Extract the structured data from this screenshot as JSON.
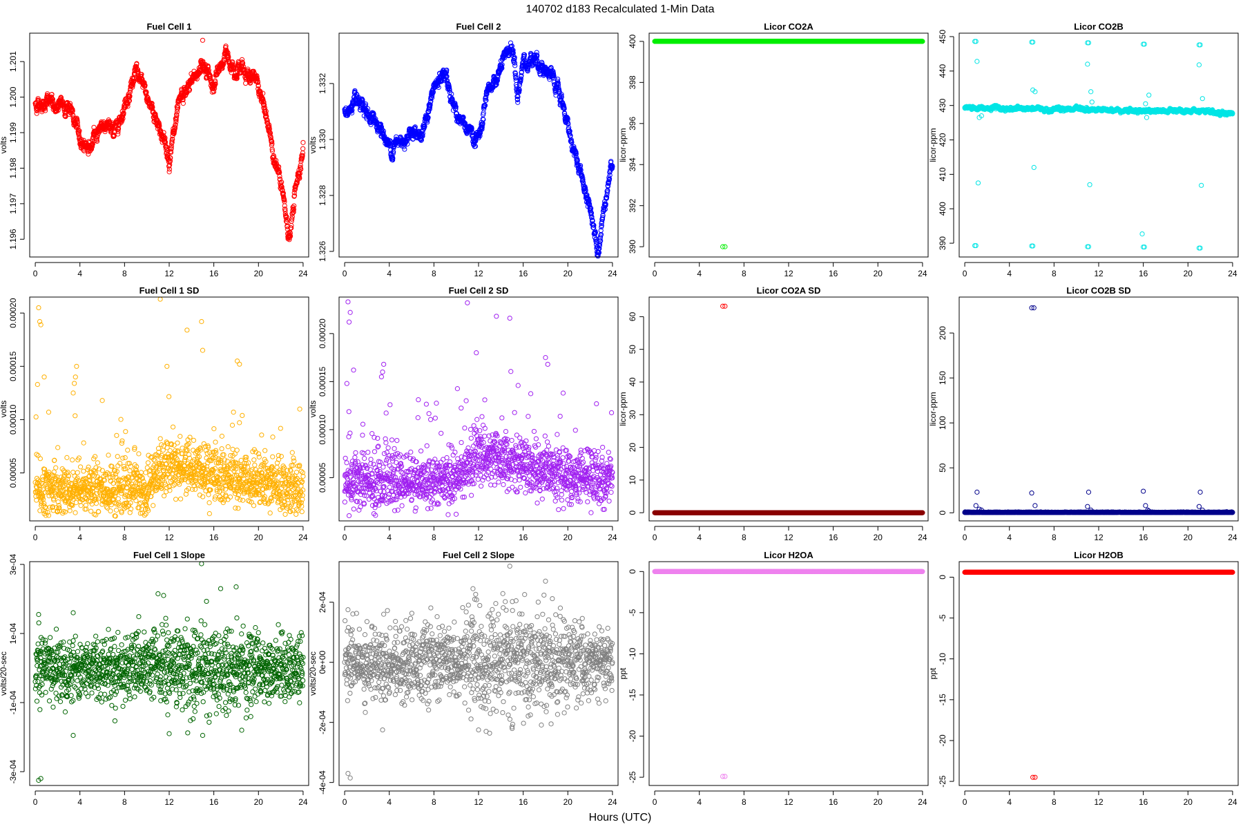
{
  "figure": {
    "title": "140702   d183   Recalculated 1-Min Data",
    "xlabel": "Hours (UTC)"
  },
  "chart_data": [
    {
      "type": "scatter",
      "title": "Fuel Cell 1",
      "ylabel": "volts",
      "color": "#ff0000",
      "xlim": [
        -0.5,
        24.5
      ],
      "ylim": [
        1.1955,
        1.2018
      ],
      "xticks": [
        0,
        4,
        8,
        12,
        16,
        20,
        24
      ],
      "yticks": [
        1.196,
        1.197,
        1.198,
        1.199,
        1.2,
        1.201
      ],
      "ytick_labels": [
        "1.196",
        "1.197",
        "1.198",
        "1.199",
        "1.200",
        "1.201"
      ],
      "mode": "curve",
      "noise": 0.00012,
      "profile": [
        [
          0,
          1.1998
        ],
        [
          1,
          1.1999
        ],
        [
          2,
          1.1997
        ],
        [
          3,
          1.1998
        ],
        [
          4,
          1.1988
        ],
        [
          5,
          1.1986
        ],
        [
          6,
          1.1993
        ],
        [
          7,
          1.199
        ],
        [
          8,
          1.1998
        ],
        [
          9,
          1.2007
        ],
        [
          10,
          1.2
        ],
        [
          11,
          1.1993
        ],
        [
          12,
          1.1983
        ],
        [
          13,
          1.1998
        ],
        [
          14,
          1.2004
        ],
        [
          15,
          1.201
        ],
        [
          16,
          1.2003
        ],
        [
          17,
          1.2012
        ],
        [
          18,
          1.2009
        ],
        [
          19,
          1.2007
        ],
        [
          20,
          1.2003
        ],
        [
          21,
          1.199
        ],
        [
          22,
          1.1975
        ],
        [
          22.8,
          1.196
        ],
        [
          23.5,
          1.1978
        ],
        [
          24,
          1.1985
        ]
      ],
      "outliers": [
        [
          15,
          1.2016
        ]
      ]
    },
    {
      "type": "scatter",
      "title": "Fuel Cell 2",
      "ylabel": "volts",
      "color": "#0000ff",
      "xlim": [
        -0.5,
        24.5
      ],
      "ylim": [
        1.3258,
        1.3338
      ],
      "xticks": [
        0,
        4,
        8,
        12,
        16,
        20,
        24
      ],
      "yticks": [
        1.326,
        1.328,
        1.33,
        1.332
      ],
      "ytick_labels": [
        "1.326",
        "1.328",
        "1.330",
        "1.332"
      ],
      "mode": "curve",
      "noise": 0.00015,
      "profile": [
        [
          0,
          1.331
        ],
        [
          1,
          1.3312
        ],
        [
          2,
          1.3308
        ],
        [
          3,
          1.3306
        ],
        [
          4,
          1.3297
        ],
        [
          5,
          1.3299
        ],
        [
          6,
          1.3304
        ],
        [
          7,
          1.3302
        ],
        [
          8,
          1.3318
        ],
        [
          9,
          1.3323
        ],
        [
          10,
          1.331
        ],
        [
          11,
          1.3302
        ],
        [
          12,
          1.33
        ],
        [
          13,
          1.3317
        ],
        [
          14,
          1.3325
        ],
        [
          15,
          1.3334
        ],
        [
          15.5,
          1.3315
        ],
        [
          16,
          1.3327
        ],
        [
          17,
          1.333
        ],
        [
          18,
          1.3325
        ],
        [
          19,
          1.3318
        ],
        [
          20,
          1.3305
        ],
        [
          21,
          1.329
        ],
        [
          22,
          1.3275
        ],
        [
          22.7,
          1.3262
        ],
        [
          23.5,
          1.3283
        ],
        [
          24,
          1.3292
        ]
      ],
      "outliers": []
    },
    {
      "type": "scatter",
      "title": "Licor CO2A",
      "ylabel": "licor-ppm",
      "color": "#00ee00",
      "xlim": [
        -0.5,
        24.5
      ],
      "ylim": [
        389.5,
        400.4
      ],
      "xticks": [
        0,
        4,
        8,
        12,
        16,
        20,
        24
      ],
      "yticks": [
        390,
        392,
        394,
        396,
        398,
        400
      ],
      "ytick_labels": [
        "390",
        "392",
        "394",
        "396",
        "398",
        "400"
      ],
      "mode": "flat",
      "level": 400,
      "noise": 0,
      "outliers": [
        [
          6.1,
          390
        ],
        [
          6.3,
          390
        ]
      ]
    },
    {
      "type": "scatter",
      "title": "Licor CO2B",
      "ylabel": "licor-ppm",
      "color": "#00e5e5",
      "xlim": [
        -0.5,
        24.5
      ],
      "ylim": [
        386,
        451
      ],
      "xticks": [
        0,
        4,
        8,
        12,
        16,
        20,
        24
      ],
      "yticks": [
        390,
        400,
        410,
        420,
        430,
        440,
        450
      ],
      "ytick_labels": [
        "390",
        "400",
        "410",
        "420",
        "430",
        "440",
        "450"
      ],
      "mode": "curve",
      "noise": 0.3,
      "profile": [
        [
          0,
          429.2
        ],
        [
          6,
          429.0
        ],
        [
          12,
          428.8
        ],
        [
          18,
          428.4
        ],
        [
          24,
          427.8
        ]
      ],
      "outliers": [
        [
          0.9,
          448.6
        ],
        [
          1.0,
          448.6
        ],
        [
          0.9,
          389.3
        ],
        [
          1.0,
          389.3
        ],
        [
          1.1,
          442.8
        ],
        [
          1.2,
          407.5
        ],
        [
          1.3,
          426.5
        ],
        [
          1.5,
          427.0
        ],
        [
          6.0,
          448.4
        ],
        [
          6.1,
          448.4
        ],
        [
          6.0,
          389.2
        ],
        [
          6.1,
          389.2
        ],
        [
          6.1,
          434.5
        ],
        [
          6.2,
          412.0
        ],
        [
          6.3,
          434.0
        ],
        [
          11.0,
          448.2
        ],
        [
          11.1,
          448.2
        ],
        [
          11.0,
          389.0
        ],
        [
          11.1,
          389.0
        ],
        [
          11.0,
          442.0
        ],
        [
          11.2,
          407.0
        ],
        [
          11.3,
          434.0
        ],
        [
          11.4,
          431.0
        ],
        [
          16.0,
          447.8
        ],
        [
          16.1,
          447.8
        ],
        [
          16.0,
          388.9
        ],
        [
          16.1,
          388.9
        ],
        [
          15.9,
          392.7
        ],
        [
          16.2,
          430.5
        ],
        [
          16.3,
          426.5
        ],
        [
          16.5,
          433.0
        ],
        [
          21.0,
          447.6
        ],
        [
          21.1,
          447.6
        ],
        [
          21.0,
          388.6
        ],
        [
          21.1,
          388.6
        ],
        [
          21.0,
          441.8
        ],
        [
          21.2,
          406.8
        ],
        [
          21.3,
          432.0
        ]
      ]
    },
    {
      "type": "scatter",
      "title": "Fuel Cell 1 SD",
      "ylabel": "volts",
      "color": "#ffb000",
      "xlim": [
        -0.5,
        24.5
      ],
      "ylim": [
        5e-06,
        0.000215
      ],
      "xticks": [
        0,
        4,
        8,
        12,
        16,
        20,
        24
      ],
      "yticks": [
        5e-05,
        0.0001,
        0.00015,
        0.0002
      ],
      "ytick_labels": [
        "0.00005",
        "0.00010",
        "0.00015",
        "0.00020"
      ],
      "mode": "sd",
      "noise": 0,
      "profile": [
        [
          0,
          3.3e-05
        ],
        [
          10,
          3.4e-05
        ],
        [
          11,
          5e-05
        ],
        [
          12,
          5.8e-05
        ],
        [
          16,
          4.8e-05
        ],
        [
          20,
          4e-05
        ],
        [
          24,
          3.5e-05
        ]
      ],
      "spread": 2.2e-05,
      "outliers": [
        [
          0.2,
          0.000133
        ],
        [
          0.3,
          0.000205
        ],
        [
          0.4,
          0.000192
        ],
        [
          0.5,
          0.000189
        ],
        [
          0.8,
          0.00014
        ],
        [
          1.2,
          0.000107
        ],
        [
          3.4,
          0.000125
        ],
        [
          3.5,
          0.000134
        ],
        [
          3.6,
          0.00014
        ],
        [
          3.7,
          0.00015
        ],
        [
          11.2,
          0.000213
        ],
        [
          11.8,
          0.00015
        ],
        [
          13.6,
          0.000184
        ],
        [
          14.9,
          0.000192
        ],
        [
          15.0,
          0.000165
        ],
        [
          18.1,
          0.000155
        ],
        [
          18.3,
          0.000152
        ]
      ]
    },
    {
      "type": "scatter",
      "title": "Fuel Cell 2 SD",
      "ylabel": "volts",
      "color": "#a020f0",
      "xlim": [
        -0.5,
        24.5
      ],
      "ylim": [
        5e-06,
        0.000238
      ],
      "xticks": [
        0,
        4,
        8,
        12,
        16,
        20,
        24
      ],
      "yticks": [
        5e-05,
        0.0001,
        0.00015,
        0.0002
      ],
      "ytick_labels": [
        "0.00005",
        "0.00010",
        "0.00015",
        "0.00020"
      ],
      "mode": "sd",
      "noise": 0,
      "profile": [
        [
          0,
          4.5e-05
        ],
        [
          10,
          4.6e-05
        ],
        [
          11,
          6e-05
        ],
        [
          12,
          7.5e-05
        ],
        [
          16,
          6.2e-05
        ],
        [
          20,
          5.2e-05
        ],
        [
          24,
          4.8e-05
        ]
      ],
      "spread": 2.5e-05,
      "outliers": [
        [
          0.2,
          0.000148
        ],
        [
          0.3,
          0.000233
        ],
        [
          0.4,
          0.000212
        ],
        [
          0.5,
          0.000222
        ],
        [
          0.8,
          0.000162
        ],
        [
          3.3,
          0.000155
        ],
        [
          3.4,
          0.00016
        ],
        [
          3.5,
          0.000168
        ],
        [
          11.0,
          0.000232
        ],
        [
          11.8,
          0.00018
        ],
        [
          13.6,
          0.000218
        ],
        [
          14.8,
          0.000216
        ],
        [
          18.0,
          0.000175
        ],
        [
          18.2,
          0.000168
        ]
      ]
    },
    {
      "type": "scatter",
      "title": "Licor CO2A SD",
      "ylabel": "licor-ppm",
      "color": "#8b0000",
      "xlim": [
        -0.5,
        24.5
      ],
      "ylim": [
        -2.5,
        66
      ],
      "xticks": [
        0,
        4,
        8,
        12,
        16,
        20,
        24
      ],
      "yticks": [
        0,
        10,
        20,
        30,
        40,
        50,
        60
      ],
      "ytick_labels": [
        "0",
        "10",
        "20",
        "30",
        "40",
        "50",
        "60"
      ],
      "mode": "flat",
      "level": 0,
      "noise": 0,
      "outliers": [
        [
          6.1,
          63.2
        ],
        [
          6.3,
          63.2
        ]
      ],
      "outlier_color": "#ff0000"
    },
    {
      "type": "scatter",
      "title": "Licor CO2B SD",
      "ylabel": "licor-ppm",
      "color": "#00008b",
      "xlim": [
        -0.5,
        24.5
      ],
      "ylim": [
        -9,
        240
      ],
      "xticks": [
        0,
        4,
        8,
        12,
        16,
        20,
        24
      ],
      "yticks": [
        0,
        50,
        100,
        150,
        200
      ],
      "ytick_labels": [
        "0",
        "50",
        "100",
        "150",
        "200"
      ],
      "mode": "flat",
      "level": 0.3,
      "noise": 0.6,
      "outliers": [
        [
          6.0,
          228
        ],
        [
          6.2,
          228
        ],
        [
          1.0,
          8
        ],
        [
          1.1,
          23
        ],
        [
          1.3,
          4
        ],
        [
          1.5,
          3
        ],
        [
          6.0,
          22
        ],
        [
          6.3,
          8
        ],
        [
          11.0,
          7
        ],
        [
          11.1,
          23
        ],
        [
          11.3,
          3
        ],
        [
          16.0,
          24
        ],
        [
          16.2,
          8
        ],
        [
          16.4,
          3
        ],
        [
          16.5,
          2
        ],
        [
          21.0,
          7
        ],
        [
          21.1,
          23
        ],
        [
          21.3,
          3
        ]
      ]
    },
    {
      "type": "scatter",
      "title": "Fuel Cell 1 Slope",
      "ylabel": "volts/20-sec",
      "color": "#006400",
      "xlim": [
        -0.5,
        24.5
      ],
      "ylim": [
        -0.00034,
        0.000308
      ],
      "xticks": [
        0,
        4,
        8,
        12,
        16,
        20,
        24
      ],
      "yticks": [
        -0.0003,
        -0.0001,
        0.0001,
        0.0003
      ],
      "ytick_labels": [
        "-3e-04",
        "-1e-04",
        "1e-04",
        "3e-04"
      ],
      "mode": "symmetric",
      "level": 0,
      "noise": 4.5e-05,
      "outliers": [
        [
          0.3,
          -0.000325
        ],
        [
          0.5,
          -0.00032
        ],
        [
          0.3,
          0.000155
        ],
        [
          3.4,
          0.00016
        ],
        [
          3.4,
          -0.000195
        ],
        [
          11.0,
          0.000215
        ],
        [
          11.5,
          0.00021
        ],
        [
          12.0,
          -0.00019
        ],
        [
          14.9,
          0.000302
        ],
        [
          15.0,
          -0.000195
        ],
        [
          18.0,
          0.000235
        ],
        [
          18.5,
          -0.00018
        ]
      ]
    },
    {
      "type": "scatter",
      "title": "Fuel Cell 2 Slope",
      "ylabel": "volts/20-sec",
      "color": "#808080",
      "xlim": [
        -0.5,
        24.5
      ],
      "ylim": [
        -0.00041,
        0.000335
      ],
      "xticks": [
        0,
        4,
        8,
        12,
        16,
        20,
        24
      ],
      "yticks": [
        -0.0004,
        -0.0002,
        0,
        0.0002
      ],
      "ytick_labels": [
        "-4e-04",
        "-2e-04",
        "0e+00",
        "2e-04"
      ],
      "mode": "symmetric",
      "level": 0,
      "noise": 6e-05,
      "outliers": [
        [
          0.3,
          -0.00037
        ],
        [
          0.5,
          -0.000385
        ],
        [
          0.3,
          0.000175
        ],
        [
          3.4,
          -0.000225
        ],
        [
          3.5,
          0.00016
        ],
        [
          11.5,
          0.000245
        ],
        [
          12.0,
          -0.000225
        ],
        [
          14.8,
          0.00032
        ],
        [
          15.0,
          -0.000215
        ],
        [
          18.0,
          0.00027
        ],
        [
          18.5,
          -0.000205
        ]
      ]
    },
    {
      "type": "scatter",
      "title": "Licor H2OA",
      "ylabel": "ppt",
      "color": "#ee82ee",
      "xlim": [
        -0.5,
        24.5
      ],
      "ylim": [
        -26,
        1.2
      ],
      "xticks": [
        0,
        4,
        8,
        12,
        16,
        20,
        24
      ],
      "yticks": [
        -25,
        -20,
        -15,
        -10,
        -5,
        0
      ],
      "ytick_labels": [
        "-25",
        "-20",
        "-15",
        "-10",
        "-5",
        "0"
      ],
      "mode": "flat",
      "level": 0,
      "noise": 0,
      "outliers": [
        [
          6.1,
          -24.9
        ],
        [
          6.3,
          -24.9
        ]
      ]
    },
    {
      "type": "scatter",
      "title": "Licor H2OB",
      "ylabel": "ppt",
      "color": "#ff0000",
      "xlim": [
        -0.5,
        24.5
      ],
      "ylim": [
        -25.5,
        1.9
      ],
      "xticks": [
        0,
        4,
        8,
        12,
        16,
        20,
        24
      ],
      "yticks": [
        -25,
        -20,
        -15,
        -10,
        -5,
        0
      ],
      "ytick_labels": [
        "-25",
        "-20",
        "-15",
        "-10",
        "-5",
        "0"
      ],
      "mode": "flat",
      "level": 0.6,
      "noise": 0,
      "outliers": [
        [
          6.1,
          -24.5
        ],
        [
          6.3,
          -24.5
        ]
      ]
    }
  ]
}
